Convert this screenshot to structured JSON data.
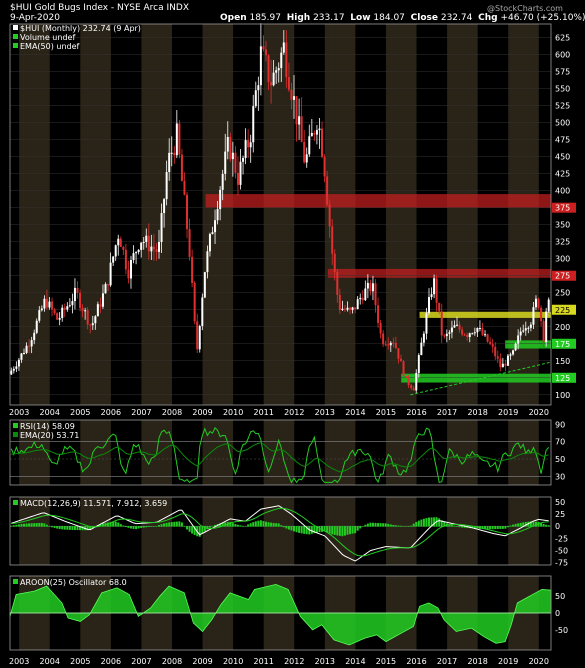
{
  "header": {
    "title": "$HUI Gold Bugs Index - NYSE Arca  INDX",
    "date": "9-Apr-2020",
    "open_label": "Open",
    "open": "185.97",
    "high_label": "High",
    "high": "233.17",
    "low_label": "Low",
    "low": "184.07",
    "close_label": "Close",
    "close": "232.74",
    "chg_label": "Chg",
    "chg": "+46.70 (+25.10%)",
    "watermark": "@StockCharts.com"
  },
  "colors": {
    "up": "#ffffff",
    "down": "#e03030",
    "green": "#22cc22",
    "band_dark": "#2a2418",
    "red_zone": "#cc2020",
    "yellow_zone": "#d8d820",
    "green_zone": "#22cc22"
  },
  "chart_data": [
    {
      "type": "candlestick",
      "panel": "price",
      "legend": [
        "$HUI (Monthly) 232.74 (9 Apr)",
        "Volume undef",
        "EMA(50) undef"
      ],
      "ylim": [
        85,
        645
      ],
      "yticks": [
        100,
        125,
        150,
        175,
        200,
        225,
        250,
        275,
        300,
        325,
        350,
        375,
        400,
        425,
        450,
        475,
        500,
        525,
        550,
        575,
        600,
        625
      ],
      "x_year_labels": [
        "2003",
        "2004",
        "2005",
        "2006",
        "2007",
        "2008",
        "2009",
        "2010",
        "2011",
        "2012",
        "2013",
        "2014",
        "2015",
        "2016",
        "2017",
        "2018",
        "2019",
        "2020"
      ],
      "x_range": [
        2002.7,
        2020.4
      ],
      "anchors": [
        [
          2002.7,
          130
        ],
        [
          2003.0,
          150
        ],
        [
          2003.4,
          180
        ],
        [
          2003.9,
          240
        ],
        [
          2004.3,
          210
        ],
        [
          2004.9,
          250
        ],
        [
          2005.4,
          200
        ],
        [
          2005.9,
          260
        ],
        [
          2006.3,
          340
        ],
        [
          2006.6,
          280
        ],
        [
          2007.0,
          330
        ],
        [
          2007.6,
          310
        ],
        [
          2007.9,
          440
        ],
        [
          2008.2,
          480
        ],
        [
          2008.6,
          320
        ],
        [
          2008.85,
          160
        ],
        [
          2009.1,
          280
        ],
        [
          2009.5,
          380
        ],
        [
          2009.9,
          470
        ],
        [
          2010.2,
          420
        ],
        [
          2010.6,
          480
        ],
        [
          2010.95,
          600
        ],
        [
          2011.3,
          560
        ],
        [
          2011.7,
          610
        ],
        [
          2012.0,
          540
        ],
        [
          2012.4,
          440
        ],
        [
          2012.8,
          510
        ],
        [
          2013.0,
          450
        ],
        [
          2013.3,
          300
        ],
        [
          2013.5,
          230
        ],
        [
          2013.9,
          220
        ],
        [
          2014.3,
          250
        ],
        [
          2014.6,
          260
        ],
        [
          2014.9,
          180
        ],
        [
          2015.3,
          180
        ],
        [
          2015.7,
          120
        ],
        [
          2015.95,
          110
        ],
        [
          2016.3,
          200
        ],
        [
          2016.6,
          270
        ],
        [
          2016.9,
          180
        ],
        [
          2017.3,
          200
        ],
        [
          2017.7,
          190
        ],
        [
          2018.0,
          200
        ],
        [
          2018.5,
          170
        ],
        [
          2018.8,
          140
        ],
        [
          2019.2,
          160
        ],
        [
          2019.5,
          200
        ],
        [
          2019.8,
          210
        ],
        [
          2020.0,
          245
        ],
        [
          2020.2,
          185
        ],
        [
          2020.3,
          233
        ]
      ],
      "zones": [
        {
          "kind": "red",
          "from": 375,
          "to": 395,
          "x_start": 2009.1
        },
        {
          "kind": "red",
          "from": 272,
          "to": 285,
          "x_start": 2013.1
        },
        {
          "kind": "yellow",
          "from": 213,
          "to": 222,
          "x_start": 2016.1
        },
        {
          "kind": "green",
          "from": 168,
          "to": 180,
          "x_start": 2018.9
        },
        {
          "kind": "green",
          "from": 118,
          "to": 131,
          "x_start": 2015.5
        }
      ],
      "right_labels": [
        {
          "value": 375,
          "color": "red"
        },
        {
          "value": 275,
          "color": "red"
        },
        {
          "value": 225,
          "color": "yellow"
        },
        {
          "value": 175,
          "color": "green"
        },
        {
          "value": 125,
          "color": "green"
        }
      ],
      "trendline": [
        [
          2015.8,
          100
        ],
        [
          2020.4,
          148
        ]
      ]
    },
    {
      "type": "line",
      "panel": "rsi",
      "legend": "RSI(14) 58.09",
      "legend2": "EMA(20) 53.71",
      "ylim": [
        20,
        95
      ],
      "yticks": [
        30,
        50,
        70,
        90
      ],
      "levels": [
        30,
        70
      ]
    },
    {
      "type": "line",
      "panel": "macd",
      "legend": "MACD(12,26,9) 11.571, 7.912, 3.659",
      "ylim": [
        -80,
        60
      ],
      "yticks": [
        -75,
        -50,
        -25,
        0,
        25,
        50
      ],
      "anchors": [
        [
          2002.7,
          5
        ],
        [
          2003.8,
          28
        ],
        [
          2004.5,
          10
        ],
        [
          2005.3,
          -8
        ],
        [
          2006.2,
          22
        ],
        [
          2006.8,
          5
        ],
        [
          2007.5,
          8
        ],
        [
          2008.3,
          35
        ],
        [
          2008.9,
          -18
        ],
        [
          2009.3,
          -5
        ],
        [
          2009.9,
          15
        ],
        [
          2010.4,
          10
        ],
        [
          2010.9,
          35
        ],
        [
          2011.5,
          42
        ],
        [
          2011.9,
          25
        ],
        [
          2012.5,
          -8
        ],
        [
          2013.0,
          -20
        ],
        [
          2013.6,
          -60
        ],
        [
          2014.0,
          -72
        ],
        [
          2014.5,
          -50
        ],
        [
          2015.0,
          -42
        ],
        [
          2015.8,
          -45
        ],
        [
          2016.4,
          -5
        ],
        [
          2016.7,
          12
        ],
        [
          2017.2,
          5
        ],
        [
          2017.8,
          -3
        ],
        [
          2018.5,
          -15
        ],
        [
          2018.9,
          -20
        ],
        [
          2019.4,
          -4
        ],
        [
          2019.8,
          10
        ],
        [
          2020.0,
          14
        ],
        [
          2020.3,
          11
        ]
      ]
    },
    {
      "type": "area",
      "panel": "aroon",
      "legend": "AROON(25) Oscillator 68.0",
      "ylim": [
        -110,
        110
      ],
      "yticks": [
        -50,
        0,
        50
      ],
      "steps": [
        [
          2002.7,
          -10
        ],
        [
          2002.9,
          55
        ],
        [
          2003.5,
          65
        ],
        [
          2003.9,
          80
        ],
        [
          2004.4,
          30
        ],
        [
          2004.6,
          -15
        ],
        [
          2005.0,
          -25
        ],
        [
          2005.3,
          -5
        ],
        [
          2005.7,
          60
        ],
        [
          2006.2,
          75
        ],
        [
          2006.6,
          55
        ],
        [
          2006.9,
          -10
        ],
        [
          2007.3,
          15
        ],
        [
          2007.6,
          50
        ],
        [
          2007.9,
          80
        ],
        [
          2008.4,
          60
        ],
        [
          2008.7,
          -30
        ],
        [
          2009.0,
          -55
        ],
        [
          2009.3,
          -20
        ],
        [
          2009.6,
          25
        ],
        [
          2009.9,
          60
        ],
        [
          2010.5,
          40
        ],
        [
          2010.7,
          70
        ],
        [
          2011.4,
          85
        ],
        [
          2011.8,
          70
        ],
        [
          2012.2,
          -10
        ],
        [
          2012.6,
          -50
        ],
        [
          2012.9,
          -35
        ],
        [
          2013.3,
          -80
        ],
        [
          2013.8,
          -95
        ],
        [
          2014.3,
          -75
        ],
        [
          2014.7,
          -65
        ],
        [
          2015.0,
          -85
        ],
        [
          2015.5,
          -60
        ],
        [
          2015.9,
          -40
        ],
        [
          2016.1,
          20
        ],
        [
          2016.4,
          30
        ],
        [
          2016.7,
          15
        ],
        [
          2016.9,
          -20
        ],
        [
          2017.3,
          -55
        ],
        [
          2017.8,
          -45
        ],
        [
          2018.2,
          -70
        ],
        [
          2018.6,
          -90
        ],
        [
          2018.9,
          -85
        ],
        [
          2019.1,
          -35
        ],
        [
          2019.3,
          30
        ],
        [
          2019.6,
          45
        ],
        [
          2019.9,
          60
        ],
        [
          2020.1,
          70
        ],
        [
          2020.4,
          68
        ]
      ]
    }
  ]
}
